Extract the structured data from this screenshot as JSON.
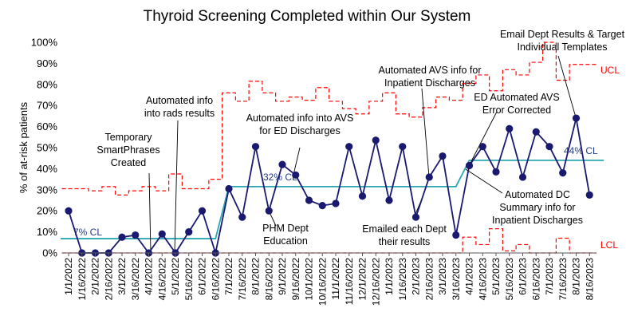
{
  "chart_data": {
    "type": "line",
    "title": "Thyroid Screening Completed within Our System",
    "ylabel": "% of at-risk patients",
    "ylim": [
      0,
      100
    ],
    "yticks": [
      "0%",
      "10%",
      "20%",
      "30%",
      "40%",
      "50%",
      "60%",
      "70%",
      "80%",
      "90%",
      "100%"
    ],
    "categories": [
      "1/1/2022",
      "1/16/2022",
      "2/1/2022",
      "2/16/2022",
      "3/1/2022",
      "3/16/2022",
      "4/1/2022",
      "4/16/2022",
      "5/1/2022",
      "5/16/2022",
      "6/1/2022",
      "6/16/2022",
      "7/1/2022",
      "7/16/2022",
      "8/1/2022",
      "8/16/2022",
      "9/1/2022",
      "9/16/2022",
      "10/1/2022",
      "10/16/2022",
      "11/1/2022",
      "11/16/2022",
      "12/1/2022",
      "12/16/2022",
      "1/1/2023",
      "1/16/2023",
      "2/1/2023",
      "2/16/2023",
      "3/1/2023",
      "3/16/2023",
      "4/1/2023",
      "4/16/2023",
      "5/1/2023",
      "5/16/2023",
      "6/1/2023",
      "6/16/2023",
      "7/1/2023",
      "7/16/2023",
      "8/1/2023",
      "8/16/2023"
    ],
    "series": [
      {
        "values": [
          20,
          0,
          0,
          0,
          7.5,
          8.5,
          0,
          9,
          0,
          10,
          20,
          0,
          30.5,
          17,
          50.5,
          20,
          42,
          37,
          25,
          22.5,
          23.5,
          50.5,
          27,
          53.5,
          25,
          50.5,
          17,
          36,
          46,
          8.5,
          41.5,
          50.5,
          38.5,
          59,
          36,
          57.5,
          50.5,
          38,
          64,
          27.5
        ]
      }
    ],
    "center_line": {
      "segments": [
        {
          "from": 0,
          "to": 11,
          "value": 6.8,
          "label": "7% CL"
        },
        {
          "from": 12,
          "to": 29,
          "value": 31.5,
          "label": "32% CL"
        },
        {
          "from": 30,
          "to": 39,
          "value": 44,
          "label": "44% CL"
        }
      ]
    },
    "ucl": [
      30.5,
      30.5,
      29.5,
      31.5,
      27.5,
      29.5,
      31.5,
      29.5,
      37.5,
      30.5,
      30.5,
      35,
      76,
      72,
      81.5,
      76,
      72,
      74,
      72.5,
      78.5,
      72,
      68.5,
      66,
      72,
      76,
      66,
      64.5,
      69,
      74,
      72.5,
      80.5,
      84.5,
      77,
      87,
      84.5,
      90.5,
      100,
      82,
      89.5,
      89.5
    ],
    "lcl": [
      0,
      0,
      0,
      0,
      0,
      0,
      0,
      0,
      0,
      0,
      0,
      0,
      0,
      0,
      0,
      0,
      0,
      0,
      0,
      0,
      0,
      0,
      0,
      0,
      0,
      0,
      0,
      0,
      0,
      0,
      7.5,
      4,
      11.5,
      1,
      4,
      0,
      0,
      7,
      0,
      0
    ],
    "ucl_label": "UCL",
    "lcl_label": "LCL",
    "annotations": [
      {
        "lines": [
          "Temporary",
          "SmartPhrases",
          "Created"
        ]
      },
      {
        "lines": [
          "Automated info",
          "into rads results"
        ]
      },
      {
        "lines": [
          "Automated info into AVS",
          "for ED Discharges"
        ]
      },
      {
        "lines": [
          "PHM Dept",
          "Education"
        ]
      },
      {
        "lines": [
          "Automated AVS info for",
          "Inpatient Discharges"
        ]
      },
      {
        "lines": [
          "Emailed each Dept",
          "their results"
        ]
      },
      {
        "lines": [
          "Email Dept Results & Target",
          "Individual Templates"
        ]
      },
      {
        "lines": [
          "ED Automated AVS",
          "Error Corrected"
        ]
      },
      {
        "lines": [
          "Automated DC",
          "Summary info for",
          "Inpatient Discharges"
        ]
      }
    ],
    "colors": {
      "data_line": "#191970",
      "data_marker": "#191970",
      "center_line": "#2AA7B0",
      "control_limits": "#FF0000",
      "cl_label": "#1F3C88",
      "axis": "#595959"
    }
  }
}
